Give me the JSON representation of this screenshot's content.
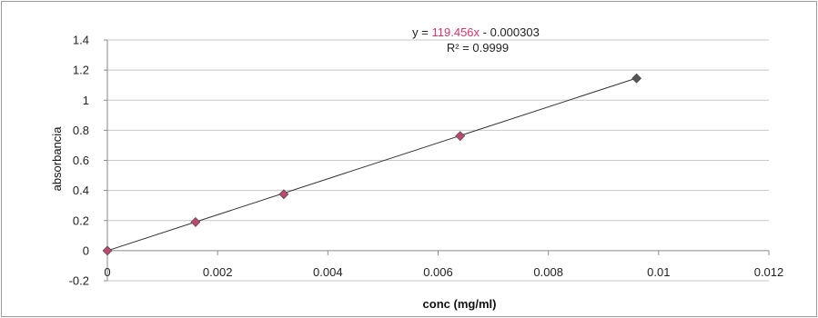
{
  "chart_data": {
    "type": "scatter",
    "title": "",
    "xlabel": "conc (mg/ml)",
    "ylabel": "absorbancia",
    "xlim": [
      0,
      0.012
    ],
    "ylim": [
      -0.2,
      1.4
    ],
    "x_ticks": [
      "0",
      "0.002",
      "0.004",
      "0.006",
      "0.008",
      "0.01",
      "0.012"
    ],
    "y_ticks": [
      "-0.2",
      "0",
      "0.2",
      "0.4",
      "0.6",
      "0.8",
      "1",
      "1.2",
      "1.4"
    ],
    "grid": true,
    "series": [
      {
        "x": [
          0,
          0.0016,
          0.0032,
          0.0064,
          0.0096
        ],
        "y": [
          0.0,
          0.19,
          0.375,
          0.762,
          1.145
        ],
        "marker": "diamond",
        "colors": [
          "#b84a6e",
          "#b84a6e",
          "#b84a6e",
          "#b84a6e",
          "#555555"
        ]
      }
    ],
    "trendline": {
      "slope": 119.456,
      "intercept": -0.000303,
      "color": "#333333"
    },
    "annotation": {
      "equation_prefix": "y = ",
      "equation_coef": "119.456x",
      "equation_suffix": " - 0.000303",
      "r_squared": "R² = 0.9999"
    }
  }
}
